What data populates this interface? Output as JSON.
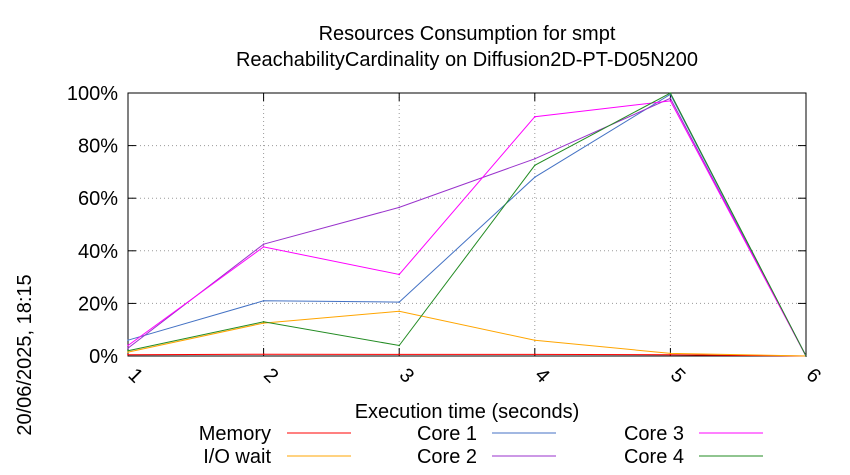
{
  "chart_data": {
    "type": "line",
    "title_line1": "Resources Consumption for smpt",
    "title_line2": "ReachabilityCardinality on Diffusion2D-PT-D05N200",
    "xlabel": "Execution time (seconds)",
    "ylabel": "",
    "side_label": "20/06/2025, 18:15",
    "x": [
      1,
      2,
      3,
      4,
      5,
      6
    ],
    "x_ticks": [
      "1",
      "2",
      "3",
      "4",
      "5",
      "6"
    ],
    "y_ticks": [
      "0%",
      "20%",
      "40%",
      "60%",
      "80%",
      "100%"
    ],
    "xlim": [
      1,
      6
    ],
    "ylim": [
      0,
      100
    ],
    "grid": true,
    "legend_position": "bottom",
    "series": [
      {
        "name": "Memory",
        "color": "#ff0000",
        "values": [
          0.5,
          0.7,
          0.6,
          0.6,
          0.5,
          0
        ]
      },
      {
        "name": "I/O wait",
        "color": "#ffa500",
        "values": [
          1.5,
          12.5,
          17,
          6,
          1,
          0
        ]
      },
      {
        "name": "Core 1",
        "color": "#4472c4",
        "values": [
          6,
          21,
          20.5,
          68,
          99.5,
          0
        ]
      },
      {
        "name": "Core 2",
        "color": "#9932cc",
        "values": [
          3,
          42.5,
          56.5,
          75,
          98,
          0
        ]
      },
      {
        "name": "Core 3",
        "color": "#ff00ff",
        "values": [
          4,
          41.5,
          31,
          91,
          97,
          0
        ]
      },
      {
        "name": "Core 4",
        "color": "#228b22",
        "values": [
          2,
          13,
          4,
          72.5,
          100,
          0
        ]
      }
    ]
  }
}
